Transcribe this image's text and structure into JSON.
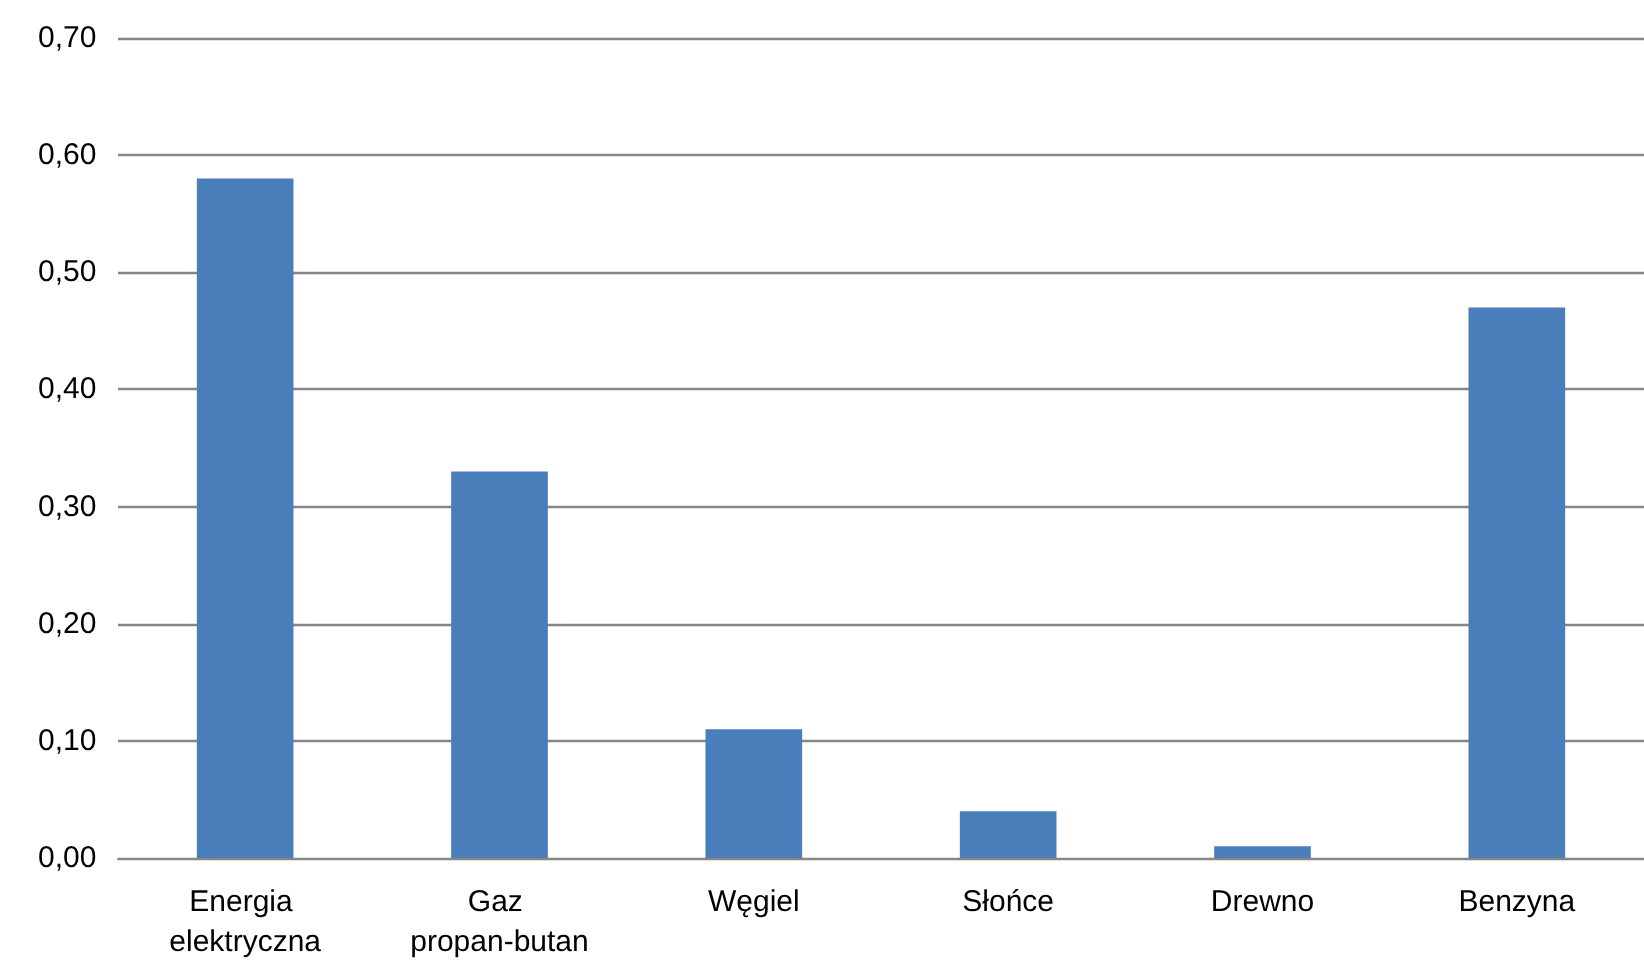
{
  "chart_data": {
    "type": "bar",
    "categories": [
      "Energia elektryczna",
      "Gaz propan-butan",
      "Węgiel",
      "Słońce",
      "Drewno",
      "Benzyna"
    ],
    "values": [
      0.58,
      0.33,
      0.11,
      0.04,
      0.01,
      0.47
    ],
    "color": "#4a7ebb",
    "ylim": [
      0,
      0.7
    ],
    "yticks": [
      {
        "value": 0,
        "label": "0,00"
      },
      {
        "value": 0.1,
        "label": "0,10"
      },
      {
        "value": 0.2,
        "label": "0,20"
      },
      {
        "value": 0.3,
        "label": "0,30"
      },
      {
        "value": 0.4,
        "label": "0,40"
      },
      {
        "value": 0.5,
        "label": "0,50"
      },
      {
        "value": 0.6,
        "label": "0,60"
      },
      {
        "value": 0.7,
        "label": "0,70"
      }
    ],
    "grid": "y"
  }
}
